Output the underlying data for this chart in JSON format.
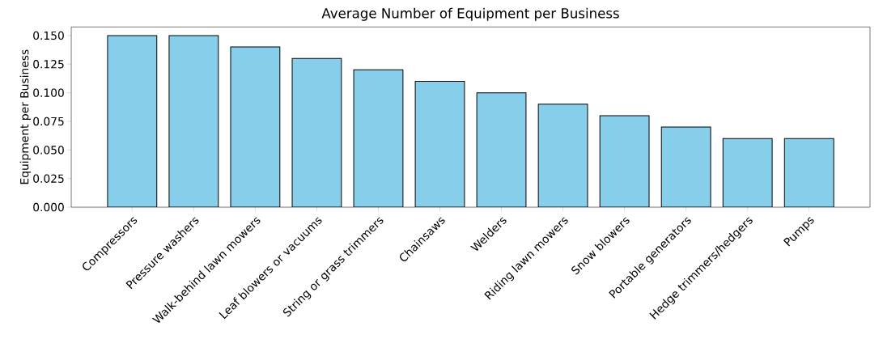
{
  "chart_data": {
    "type": "bar",
    "title": "Average Number of Equipment per Business",
    "ylabel": "Equipment per Business",
    "categories": [
      "Compressors",
      "Pressure washers",
      "Walk-behind lawn mowers",
      "Leaf blowers or vacuums",
      "String or grass trimmers",
      "Chainsaws",
      "Welders",
      "Riding lawn mowers",
      "Snow blowers",
      "Portable generators",
      "Hedge trimmers/hedgers",
      "Pumps"
    ],
    "values": [
      0.15,
      0.15,
      0.14,
      0.13,
      0.12,
      0.11,
      0.1,
      0.09,
      0.08,
      0.07,
      0.06,
      0.06
    ],
    "color": "#87ceeb",
    "ylim": [
      0,
      0.1575
    ],
    "yticks": [
      {
        "value": 0,
        "label": "0.000"
      },
      {
        "value": 0.025,
        "label": "0.025"
      },
      {
        "value": 0.05,
        "label": "0.050"
      },
      {
        "value": 0.075,
        "label": "0.075"
      },
      {
        "value": 0.1,
        "label": "0.100"
      },
      {
        "value": 0.125,
        "label": "0.125"
      },
      {
        "value": 0.15,
        "label": "0.150"
      }
    ],
    "grid": false,
    "legend": false
  }
}
